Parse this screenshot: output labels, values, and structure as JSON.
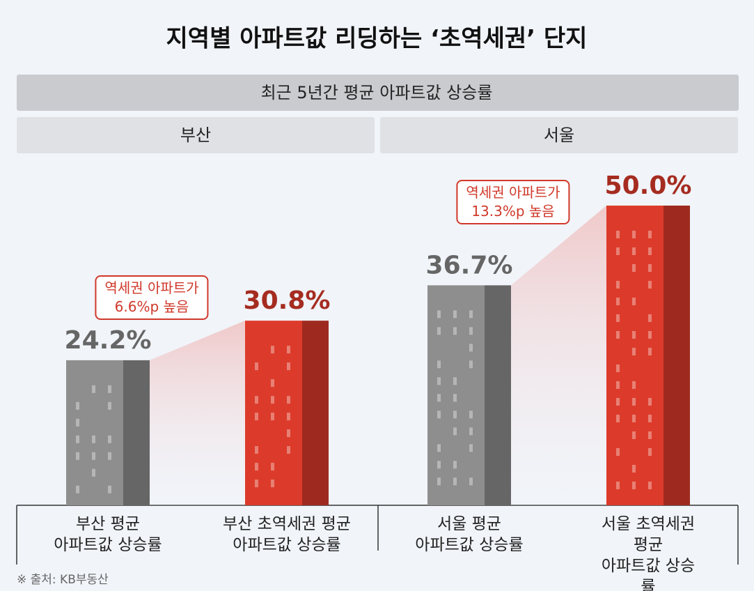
{
  "title": "지역별 아파트값 리딩하는 ‘초역세권’ 단지",
  "subtitle": "최근 5년간 평균 아파트값 상승률",
  "source": "※ 출처: KB부동산",
  "chart_data": [
    {
      "type": "bar",
      "title": "부산",
      "categories": [
        "부산 평균\n아파트값 상승률",
        "부산 초역세권 평균\n아파트값 상승률"
      ],
      "values": [
        24.2,
        30.8
      ],
      "value_labels": [
        "24.2%",
        "30.8%"
      ],
      "colors": [
        "#8e8e8e",
        "#dc3b2b"
      ],
      "annotation": "역세권 아파트가\n6.6%p 높음"
    },
    {
      "type": "bar",
      "title": "서울",
      "categories": [
        "서울 평균\n아파트값 상승률",
        "서울 초역세권 평균\n아파트값 상승률"
      ],
      "values": [
        36.7,
        50.0
      ],
      "value_labels": [
        "36.7%",
        "50.0%"
      ],
      "colors": [
        "#8e8e8e",
        "#dc3b2b"
      ],
      "annotation": "역세권 아파트가\n13.3%p 높음"
    }
  ]
}
